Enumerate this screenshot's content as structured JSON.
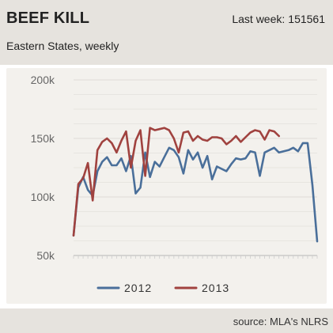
{
  "header": {
    "title": "BEEF KILL",
    "last_week_label": "Last week:",
    "last_week_value": "151561",
    "subtitle": "Eastern States, weekly"
  },
  "footer": {
    "source": "source: MLA's NLRS"
  },
  "colors": {
    "s2012": "#4a6f9a",
    "s2013": "#a0423f",
    "grid": "#e3e0db",
    "plot_bg": "#f3f1ed"
  },
  "chart_data": {
    "type": "line",
    "title": "",
    "xlabel": "",
    "ylabel": "",
    "ylim": [
      50000,
      200000
    ],
    "yticks": [
      50000,
      100000,
      150000,
      200000
    ],
    "ytick_labels": [
      "50k",
      "100k",
      "150k",
      "200k"
    ],
    "x_count": 52,
    "grid": true,
    "legend_position": "bottom",
    "series": [
      {
        "name": "2012",
        "values": [
          67000,
          108000,
          117000,
          106000,
          101000,
          122000,
          130000,
          134000,
          127000,
          127000,
          133000,
          122000,
          135000,
          103000,
          108000,
          138000,
          117000,
          130000,
          126000,
          134000,
          142000,
          140000,
          134000,
          120000,
          140000,
          132000,
          138000,
          125000,
          135000,
          115000,
          126000,
          124000,
          122000,
          128000,
          133000,
          132000,
          133000,
          139000,
          138000,
          118000,
          138000,
          140000,
          142000,
          138000,
          139000,
          140000,
          142000,
          139000,
          146000,
          146000,
          110000,
          62000
        ]
      },
      {
        "name": "2013",
        "values": [
          67000,
          111000,
          116000,
          129000,
          97000,
          140000,
          147000,
          150000,
          146000,
          138000,
          148000,
          156000,
          125000,
          148000,
          157000,
          118000,
          159000,
          157000,
          158000,
          159000,
          157000,
          150000,
          138000,
          155000,
          156000,
          148000,
          152000,
          149000,
          148000,
          151000,
          151000,
          150000,
          145000,
          148000,
          152000,
          147000,
          151000,
          155000,
          157000,
          156000,
          149000,
          157000,
          156000,
          152000
        ]
      }
    ]
  }
}
